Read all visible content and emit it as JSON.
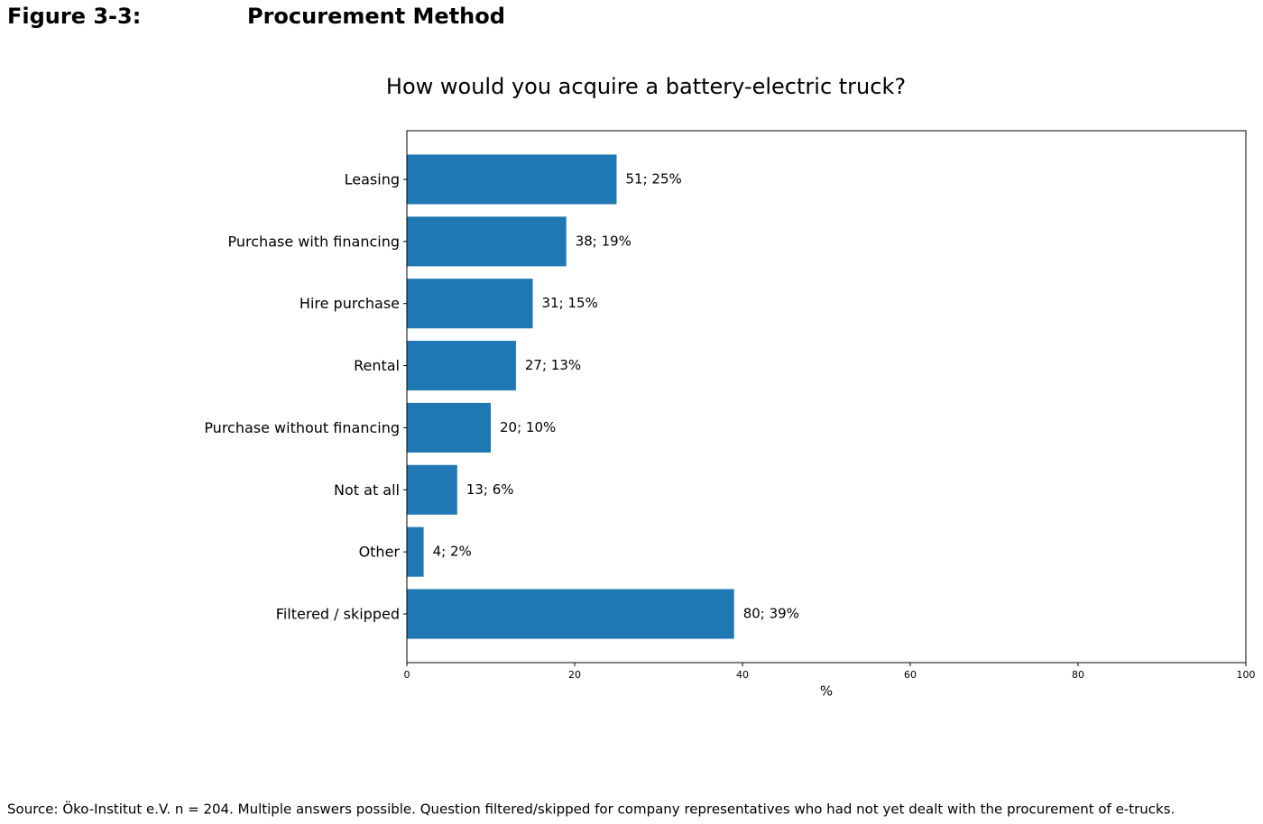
{
  "figure": {
    "label": "Figure 3-3:",
    "title": "Procurement Method"
  },
  "source": "Source: Öko-Institut e.V. n = 204. Multiple answers possible. Question filtered/skipped for company representatives who had not yet dealt with the procurement of e-trucks.",
  "chart_data": {
    "type": "barh",
    "title": "How would you acquire a battery-electric truck?",
    "categories": [
      "Leasing",
      "Purchase with financing",
      "Hire purchase",
      "Rental",
      "Purchase without financing",
      "Not at all",
      "Other",
      "Filtered / skipped"
    ],
    "values": [
      25,
      19,
      15,
      13,
      10,
      6,
      2,
      39
    ],
    "value_labels": [
      "51; 25%",
      "38; 19%",
      "31; 15%",
      "27; 13%",
      "20; 10%",
      "13; 6%",
      "4; 2%",
      "80; 39%"
    ],
    "color": "#1f77b4",
    "x_label": "%",
    "xlim": [
      0,
      100
    ],
    "xticks": [
      0,
      20,
      40,
      60,
      80,
      100
    ],
    "grid": false
  }
}
